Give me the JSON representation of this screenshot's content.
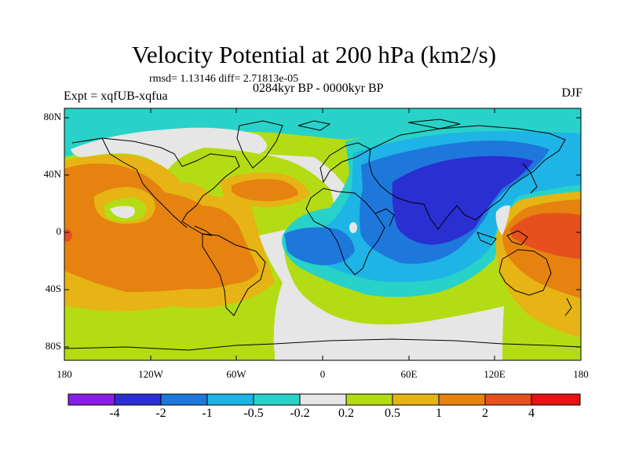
{
  "map": {
    "title": "Velocity Potential at 200 hPa (km2/s)",
    "stats": "rmsd= 1.13146 diff= 2.71813e-05",
    "experiment": "Expt = xqfUB-xqfua",
    "period": "0284kyr BP - 0000kyr BP",
    "season": "DJF",
    "lat_ticks": [
      "80N",
      "40N",
      "0",
      "40S",
      "80S"
    ],
    "lon_ticks": [
      "180",
      "120W",
      "60W",
      "0",
      "60E",
      "120E",
      "180"
    ]
  },
  "colorbar": {
    "labels": [
      "-4",
      "-2",
      "-1",
      "-0.5",
      "-0.2",
      "0.2",
      "0.5",
      "1",
      "2",
      "4"
    ],
    "colors": [
      "#8a1ee6",
      "#2a2fd2",
      "#1e78dc",
      "#1eb4e6",
      "#28d2c8",
      "#e6e6e6",
      "#b4dc14",
      "#e6b414",
      "#e6820f",
      "#e6501e",
      "#e61414"
    ]
  }
}
